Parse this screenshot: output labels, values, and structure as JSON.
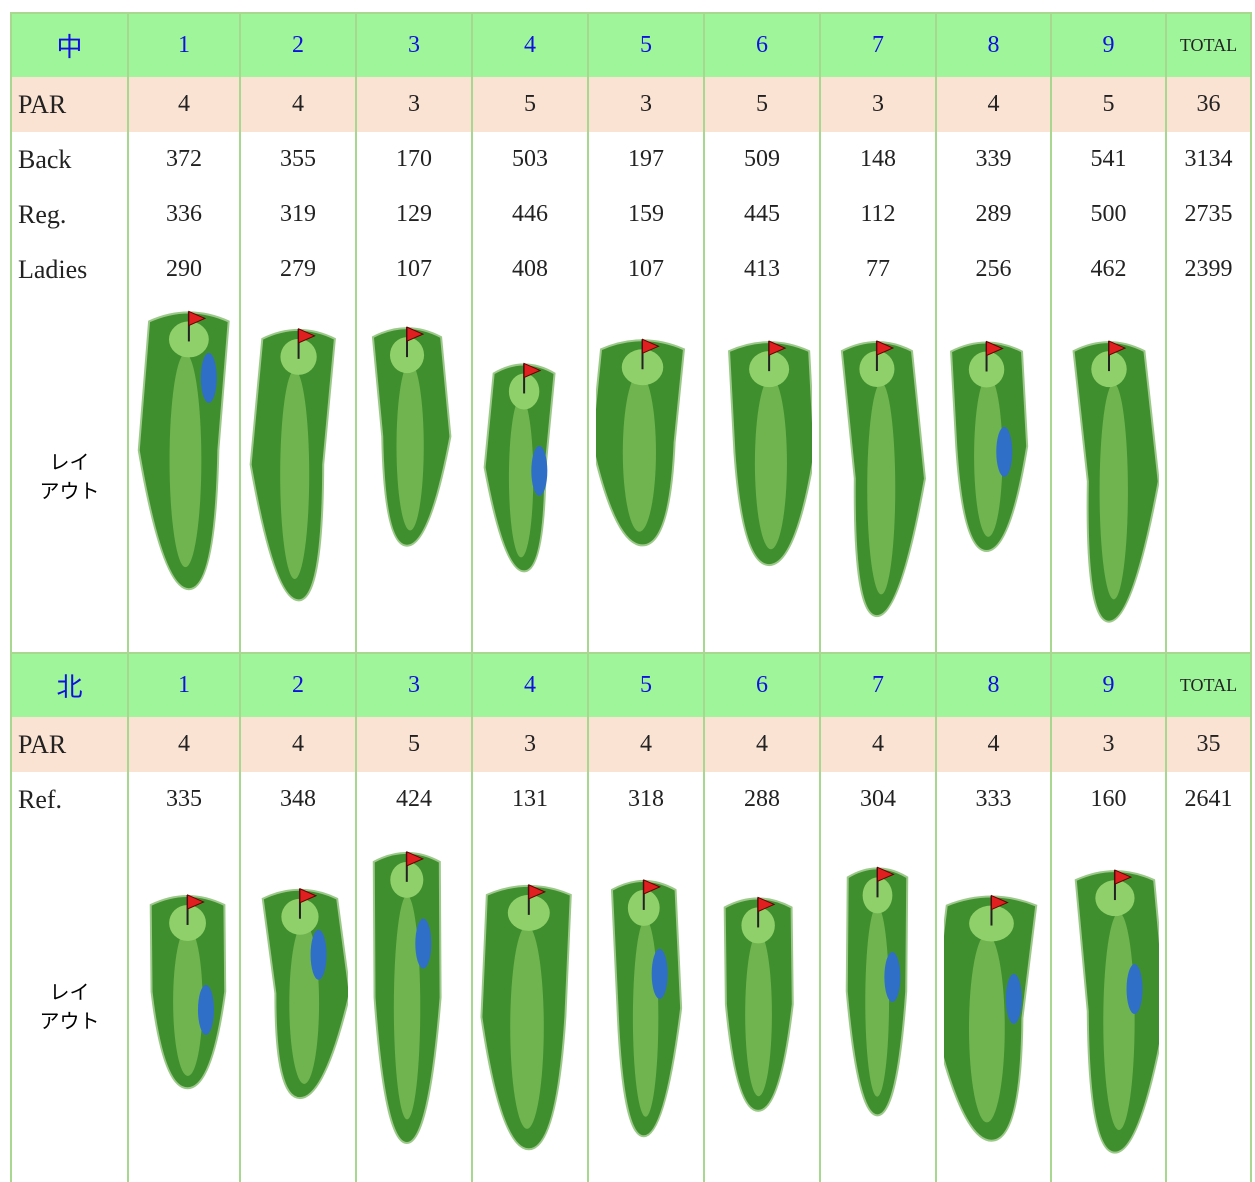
{
  "sections": [
    {
      "course": "中",
      "holes": [
        "1",
        "2",
        "3",
        "4",
        "5",
        "6",
        "7",
        "8",
        "9"
      ],
      "total_label": "TOTAL",
      "rows": [
        {
          "label": "PAR",
          "values": [
            4,
            4,
            3,
            5,
            3,
            5,
            3,
            4,
            5
          ],
          "total": 36
        },
        {
          "label": "Back",
          "values": [
            372,
            355,
            170,
            503,
            197,
            509,
            148,
            339,
            541
          ],
          "total": 3134
        },
        {
          "label": "Reg.",
          "values": [
            336,
            319,
            129,
            446,
            159,
            445,
            112,
            289,
            500
          ],
          "total": 2735
        },
        {
          "label": "Ladies",
          "values": [
            290,
            279,
            107,
            408,
            107,
            413,
            77,
            256,
            462
          ],
          "total": 2399
        }
      ],
      "layout_label": [
        "レイ",
        "アウト"
      ]
    },
    {
      "course": "北",
      "holes": [
        "1",
        "2",
        "3",
        "4",
        "5",
        "6",
        "7",
        "8",
        "9"
      ],
      "total_label": "TOTAL",
      "rows": [
        {
          "label": "PAR",
          "values": [
            4,
            4,
            5,
            3,
            4,
            4,
            4,
            4,
            3
          ],
          "total": 35
        },
        {
          "label": "Ref.",
          "values": [
            335,
            348,
            424,
            131,
            318,
            288,
            304,
            333,
            160
          ],
          "total": 2641
        }
      ],
      "layout_label": [
        "レイ",
        "アウト"
      ]
    }
  ]
}
